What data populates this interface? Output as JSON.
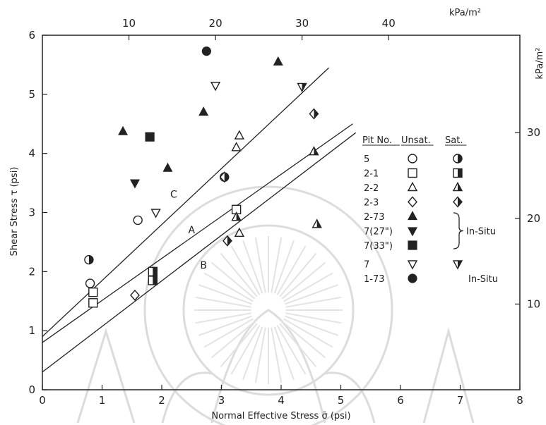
{
  "chart_data": {
    "type": "scatter",
    "title": "",
    "xlabel": "Normal Effective Stress σ̄ (psi)",
    "ylabel": "Shear Stress τ (psi)",
    "xlim": [
      0,
      8
    ],
    "ylim": [
      0,
      6
    ],
    "x_ticks": [
      "0",
      "1",
      "2",
      "3",
      "4",
      "5",
      "6",
      "7",
      "8"
    ],
    "y_ticks": [
      "0",
      "1",
      "2",
      "3",
      "4",
      "5",
      "6"
    ],
    "top_axis": {
      "unit": "kPa/m²",
      "ticks": [
        "10",
        "20",
        "30",
        "40"
      ]
    },
    "right_axis": {
      "unit": "kPa/m²",
      "ticks": [
        "10",
        "20",
        "30"
      ]
    },
    "lines": [
      {
        "name": "C",
        "points": [
          [
            0,
            0.9
          ],
          [
            4.8,
            5.45
          ]
        ]
      },
      {
        "name": "A",
        "points": [
          [
            0,
            0.8
          ],
          [
            5.2,
            4.5
          ]
        ]
      },
      {
        "name": "B",
        "points": [
          [
            0,
            0.3
          ],
          [
            5.25,
            4.35
          ]
        ]
      }
    ],
    "series": [
      {
        "name": "5 Unsat.",
        "marker": "circle-open",
        "points": [
          [
            0.8,
            1.8
          ],
          [
            1.6,
            2.87
          ]
        ]
      },
      {
        "name": "5 Sat.",
        "marker": "circle-half",
        "points": [
          [
            0.78,
            2.2
          ],
          [
            3.05,
            3.6
          ]
        ]
      },
      {
        "name": "2-1 Unsat.",
        "marker": "square-open",
        "points": [
          [
            0.85,
            1.65
          ],
          [
            0.85,
            1.47
          ],
          [
            3.25,
            3.05
          ]
        ]
      },
      {
        "name": "2-1 Sat.",
        "marker": "square-half",
        "points": [
          [
            1.85,
            2.0
          ],
          [
            1.85,
            1.85
          ]
        ]
      },
      {
        "name": "2-2 Unsat.",
        "marker": "triangle-open",
        "points": [
          [
            3.3,
            4.3
          ],
          [
            3.25,
            4.1
          ],
          [
            3.3,
            2.65
          ]
        ]
      },
      {
        "name": "2-2 Sat.",
        "marker": "triangle-half",
        "points": [
          [
            3.25,
            2.92
          ],
          [
            4.55,
            4.03
          ],
          [
            4.6,
            2.8
          ]
        ]
      },
      {
        "name": "2-3 Unsat.",
        "marker": "diamond-open",
        "points": [
          [
            1.55,
            1.6
          ]
        ]
      },
      {
        "name": "2-3 Sat.",
        "marker": "diamond-half",
        "points": [
          [
            3.1,
            2.52
          ],
          [
            3.05,
            3.6
          ],
          [
            4.55,
            4.67
          ]
        ]
      },
      {
        "name": "2-73 In-Situ",
        "marker": "triangle-filled",
        "points": [
          [
            1.35,
            4.37
          ],
          [
            2.1,
            3.75
          ],
          [
            2.7,
            4.7
          ],
          [
            3.95,
            5.55
          ]
        ]
      },
      {
        "name": "7(27\") In-Situ",
        "marker": "triangle-down-filled",
        "points": [
          [
            1.55,
            3.5
          ]
        ]
      },
      {
        "name": "7(33\") In-Situ",
        "marker": "square-filled",
        "points": [
          [
            1.8,
            4.28
          ]
        ]
      },
      {
        "name": "7 Unsat.",
        "marker": "triangle-down-open",
        "points": [
          [
            1.9,
            3.0
          ],
          [
            2.9,
            5.15
          ]
        ]
      },
      {
        "name": "7 Sat.",
        "marker": "triangle-down-half",
        "points": [
          [
            4.35,
            5.13
          ]
        ]
      },
      {
        "name": "1-73 In-Situ",
        "marker": "circle-filled",
        "points": [
          [
            2.75,
            5.73
          ]
        ]
      }
    ],
    "legend": {
      "placement": "right",
      "headers": [
        "Pit No.",
        "Unsat.",
        "Sat."
      ],
      "rows": [
        {
          "pit": "5",
          "unsat": "circle-open",
          "sat": "circle-half",
          "note": ""
        },
        {
          "pit": "2-1",
          "unsat": "square-open",
          "sat": "square-half",
          "note": ""
        },
        {
          "pit": "2-2",
          "unsat": "triangle-open",
          "sat": "triangle-half",
          "note": ""
        },
        {
          "pit": "2-3",
          "unsat": "diamond-open",
          "sat": "diamond-half",
          "note": ""
        },
        {
          "pit": "2-73",
          "unsat": "triangle-filled",
          "sat": "",
          "note": ""
        },
        {
          "pit": "7(27\")",
          "unsat": "triangle-down-filled",
          "sat": "",
          "note": ""
        },
        {
          "pit": "7(33\")",
          "unsat": "square-filled",
          "sat": "",
          "note": ""
        },
        {
          "pit": "7",
          "unsat": "triangle-down-open",
          "sat": "triangle-down-half",
          "note": ""
        },
        {
          "pit": "1-73",
          "unsat": "circle-filled",
          "sat": "",
          "note": "In-Situ"
        }
      ],
      "bracket_note": "In-Situ"
    },
    "colors": {
      "ink": "#222222",
      "watermark": "#d8d8d8"
    }
  }
}
